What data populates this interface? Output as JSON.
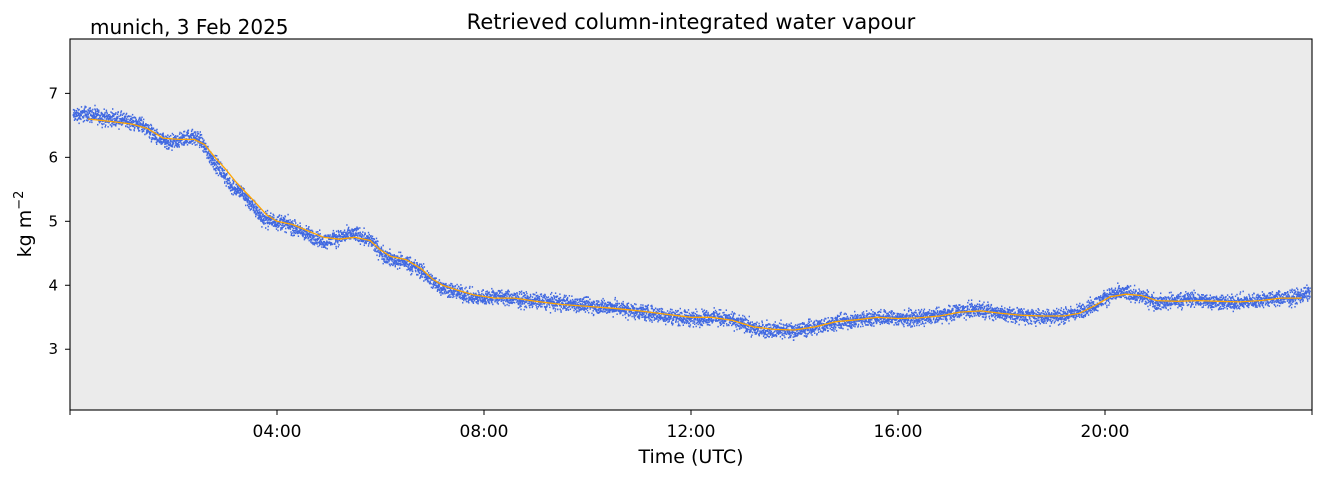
{
  "header": {
    "site_date": "munich, 3 Feb 2025"
  },
  "chart_data": {
    "type": "line",
    "title": "Retrieved column-integrated water vapour",
    "xlabel": "Time (UTC)",
    "ylabel": "kg m",
    "ylabel_superscript": "−2",
    "x_unit": "hours UTC",
    "xlim": [
      0,
      24
    ],
    "ylim": [
      2.05,
      7.85
    ],
    "x_tick_labels": [
      {
        "value": 4,
        "label": "04:00"
      },
      {
        "value": 8,
        "label": "08:00"
      },
      {
        "value": 12,
        "label": "12:00"
      },
      {
        "value": 16,
        "label": "16:00"
      },
      {
        "value": 20,
        "label": "20:00"
      }
    ],
    "y_ticks": [
      3,
      4,
      5,
      6,
      7
    ],
    "plot_background": "#ebebeb",
    "series": [
      {
        "kind": "raw-scatter",
        "color": "#4169e1",
        "x": [
          0.05,
          0.3,
          0.6,
          1.0,
          1.4,
          1.7,
          1.9,
          2.1,
          2.3,
          2.5,
          2.7,
          2.9,
          3.1,
          3.3,
          3.5,
          3.7,
          3.9,
          4.1,
          4.3,
          4.6,
          4.9,
          5.2,
          5.5,
          5.8,
          6.0,
          6.2,
          6.5,
          6.8,
          7.0,
          7.2,
          7.5,
          7.8,
          8.2,
          8.6,
          9.0,
          9.5,
          10.0,
          10.5,
          11.0,
          11.5,
          12.0,
          12.4,
          12.8,
          13.2,
          13.6,
          14.0,
          14.4,
          14.8,
          15.2,
          15.6,
          16.0,
          16.4,
          16.8,
          17.2,
          17.6,
          18.0,
          18.4,
          18.8,
          19.2,
          19.5,
          19.8,
          20.1,
          20.4,
          20.7,
          21.0,
          21.3,
          21.6,
          22.0,
          22.4,
          22.8,
          23.2,
          23.6,
          23.95
        ],
        "y": [
          6.65,
          6.68,
          6.62,
          6.58,
          6.5,
          6.28,
          6.2,
          6.26,
          6.32,
          6.28,
          6.0,
          5.8,
          5.55,
          5.45,
          5.25,
          5.05,
          5.0,
          4.98,
          4.9,
          4.78,
          4.68,
          4.75,
          4.8,
          4.7,
          4.5,
          4.4,
          4.35,
          4.2,
          4.05,
          3.95,
          3.88,
          3.8,
          3.82,
          3.78,
          3.75,
          3.72,
          3.68,
          3.65,
          3.58,
          3.52,
          3.48,
          3.5,
          3.45,
          3.32,
          3.3,
          3.28,
          3.35,
          3.42,
          3.45,
          3.5,
          3.48,
          3.48,
          3.52,
          3.6,
          3.62,
          3.55,
          3.52,
          3.5,
          3.52,
          3.58,
          3.7,
          3.85,
          3.88,
          3.82,
          3.72,
          3.75,
          3.78,
          3.75,
          3.72,
          3.75,
          3.78,
          3.8,
          3.88
        ],
        "spread": 0.09
      },
      {
        "kind": "smoothed-line",
        "color": "#ffa500",
        "x": [
          0.35,
          0.8,
          1.2,
          1.5,
          1.8,
          2.1,
          2.4,
          2.6,
          2.8,
          3.0,
          3.2,
          3.4,
          3.6,
          3.8,
          4.0,
          4.3,
          4.6,
          4.9,
          5.2,
          5.5,
          5.8,
          6.0,
          6.2,
          6.5,
          6.8,
          7.0,
          7.2,
          7.5,
          7.8,
          8.2,
          8.6,
          9.0,
          9.5,
          10.0,
          10.5,
          11.0,
          11.5,
          12.0,
          12.4,
          12.8,
          13.2,
          13.6,
          14.0,
          14.4,
          14.8,
          15.2,
          15.6,
          16.0,
          16.4,
          16.8,
          17.2,
          17.6,
          18.0,
          18.4,
          18.8,
          19.2,
          19.5,
          19.8,
          20.1,
          20.4,
          20.7,
          21.0,
          21.4,
          21.8,
          22.2,
          22.6,
          23.0,
          23.4,
          23.8
        ],
        "y": [
          6.6,
          6.56,
          6.52,
          6.45,
          6.3,
          6.28,
          6.28,
          6.2,
          6.0,
          5.82,
          5.62,
          5.45,
          5.28,
          5.1,
          5.0,
          4.95,
          4.85,
          4.75,
          4.72,
          4.75,
          4.7,
          4.55,
          4.45,
          4.4,
          4.25,
          4.1,
          4.0,
          3.92,
          3.85,
          3.8,
          3.8,
          3.75,
          3.7,
          3.67,
          3.64,
          3.6,
          3.55,
          3.5,
          3.5,
          3.45,
          3.35,
          3.31,
          3.3,
          3.35,
          3.43,
          3.46,
          3.5,
          3.48,
          3.49,
          3.52,
          3.58,
          3.6,
          3.56,
          3.53,
          3.52,
          3.52,
          3.56,
          3.68,
          3.82,
          3.86,
          3.84,
          3.76,
          3.75,
          3.76,
          3.75,
          3.74,
          3.76,
          3.8,
          3.8
        ]
      }
    ]
  }
}
